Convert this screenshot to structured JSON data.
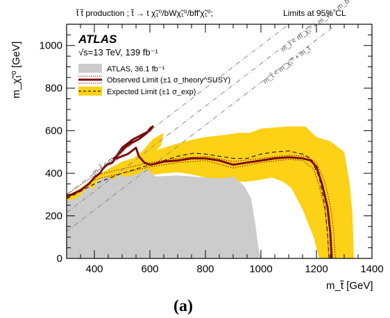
{
  "header": {
    "process": "t̃ t̃ production ; t̃ → t χ̃₁⁰/bWχ̃₁⁰/bff′χ̃₁⁰;",
    "cl": "Limits at 95% CL"
  },
  "atlas": {
    "label": "ATLAS",
    "energy_lumi": "√s=13 TeV, 139 fb⁻¹"
  },
  "panel_label": "(a)",
  "chart_data": {
    "type": "area",
    "xlabel": "m_t̃ [GeV]",
    "ylabel": "m_χ̃₁⁰ [GeV]",
    "xlim": [
      300,
      1400
    ],
    "ylim": [
      0,
      1100
    ],
    "x_ticks": [
      400,
      600,
      800,
      1000,
      1200,
      1400
    ],
    "y_ticks": [
      0,
      200,
      400,
      600,
      800,
      1000
    ],
    "grid": false,
    "legend_position": "top-left",
    "legend": [
      {
        "key": "atlas36",
        "label": "ATLAS, 36.1 fb⁻¹",
        "color": "#cccccc"
      },
      {
        "key": "observed",
        "label": "Observed Limit (±1 σ_theory^SUSY)",
        "color": "#7b0a0a"
      },
      {
        "key": "expected",
        "label": "Expected Limit (±1 σ_exp)",
        "color": "#fcd116"
      }
    ],
    "kinematic_lines": [
      {
        "label": "m_t̃ < m_χ̃₁⁰",
        "offset": 0
      },
      {
        "label": "m_t̃ < m_χ̃₁⁰ + m_t",
        "offset": 173
      },
      {
        "label": "m_t̃ < m_χ̃₁⁰ + m_W + m_b",
        "offset": 85
      }
    ],
    "atlas36_region": [
      [
        300,
        270
      ],
      [
        340,
        285
      ],
      [
        380,
        340
      ],
      [
        395,
        325
      ],
      [
        405,
        355
      ],
      [
        430,
        380
      ],
      [
        455,
        380
      ],
      [
        470,
        370
      ],
      [
        490,
        400
      ],
      [
        505,
        380
      ],
      [
        515,
        390
      ],
      [
        530,
        385
      ],
      [
        560,
        400
      ],
      [
        590,
        420
      ],
      [
        620,
        385
      ],
      [
        700,
        390
      ],
      [
        800,
        380
      ],
      [
        860,
        375
      ],
      [
        900,
        385
      ],
      [
        940,
        340
      ],
      [
        965,
        280
      ],
      [
        980,
        160
      ],
      [
        990,
        60
      ],
      [
        1000,
        0
      ],
      [
        300,
        0
      ]
    ],
    "expected_band_upper": [
      [
        300,
        290
      ],
      [
        350,
        330
      ],
      [
        400,
        380
      ],
      [
        450,
        420
      ],
      [
        500,
        455
      ],
      [
        560,
        480
      ],
      [
        600,
        500
      ],
      [
        650,
        520
      ],
      [
        700,
        540
      ],
      [
        760,
        560
      ],
      [
        800,
        570
      ],
      [
        870,
        580
      ],
      [
        920,
        590
      ],
      [
        960,
        590
      ],
      [
        1000,
        610
      ],
      [
        1050,
        615
      ],
      [
        1100,
        620
      ],
      [
        1160,
        620
      ],
      [
        1200,
        570
      ],
      [
        1250,
        550
      ],
      [
        1300,
        500
      ],
      [
        1320,
        350
      ],
      [
        1330,
        200
      ],
      [
        1335,
        0
      ]
    ],
    "expected_band_lower": [
      [
        1210,
        0
      ],
      [
        1190,
        100
      ],
      [
        1150,
        230
      ],
      [
        1110,
        330
      ],
      [
        1080,
        360
      ],
      [
        1040,
        380
      ],
      [
        1000,
        370
      ],
      [
        950,
        360
      ],
      [
        900,
        360
      ],
      [
        850,
        370
      ],
      [
        800,
        380
      ],
      [
        750,
        395
      ],
      [
        700,
        405
      ],
      [
        650,
        400
      ],
      [
        600,
        390
      ],
      [
        560,
        380
      ],
      [
        500,
        360
      ],
      [
        450,
        330
      ],
      [
        400,
        300
      ],
      [
        350,
        270
      ],
      [
        300,
        250
      ]
    ],
    "expected_band_lobes": [
      [
        [
          460,
          310
        ],
        [
          500,
          430
        ],
        [
          540,
          470
        ],
        [
          570,
          500
        ],
        [
          610,
          560
        ],
        [
          650,
          590
        ],
        [
          640,
          530
        ],
        [
          600,
          480
        ],
        [
          560,
          440
        ],
        [
          520,
          390
        ],
        [
          480,
          330
        ]
      ]
    ],
    "expected_limit": [
      [
        300,
        280
      ],
      [
        400,
        350
      ],
      [
        500,
        400
      ],
      [
        600,
        440
      ],
      [
        700,
        480
      ],
      [
        760,
        495
      ],
      [
        800,
        490
      ],
      [
        850,
        480
      ],
      [
        900,
        470
      ],
      [
        950,
        470
      ],
      [
        1000,
        490
      ],
      [
        1050,
        500
      ],
      [
        1100,
        505
      ],
      [
        1150,
        490
      ],
      [
        1180,
        470
      ],
      [
        1210,
        380
      ],
      [
        1230,
        250
      ],
      [
        1240,
        120
      ],
      [
        1245,
        0
      ]
    ],
    "observed_limit": [
      [
        300,
        290
      ],
      [
        350,
        320
      ],
      [
        380,
        350
      ],
      [
        400,
        380
      ],
      [
        420,
        400
      ],
      [
        430,
        420
      ],
      [
        445,
        440
      ],
      [
        465,
        450
      ],
      [
        480,
        480
      ],
      [
        495,
        500
      ],
      [
        510,
        520
      ],
      [
        530,
        540
      ],
      [
        560,
        560
      ],
      [
        590,
        590
      ],
      [
        600,
        610
      ],
      [
        610,
        620
      ],
      [
        600,
        600
      ],
      [
        570,
        580
      ],
      [
        540,
        560
      ],
      [
        520,
        540
      ],
      [
        500,
        520
      ],
      [
        490,
        500
      ],
      [
        480,
        480
      ],
      [
        470,
        470
      ],
      [
        480,
        470
      ],
      [
        500,
        480
      ],
      [
        520,
        490
      ],
      [
        530,
        500
      ],
      [
        540,
        510
      ],
      [
        550,
        520
      ],
      [
        560,
        480
      ],
      [
        580,
        450
      ],
      [
        600,
        440
      ],
      [
        620,
        445
      ],
      [
        650,
        455
      ],
      [
        700,
        460
      ],
      [
        750,
        470
      ],
      [
        800,
        470
      ],
      [
        850,
        460
      ],
      [
        900,
        440
      ],
      [
        950,
        450
      ],
      [
        1000,
        460
      ],
      [
        1050,
        470
      ],
      [
        1100,
        475
      ],
      [
        1150,
        470
      ],
      [
        1180,
        460
      ],
      [
        1200,
        430
      ],
      [
        1220,
        350
      ],
      [
        1240,
        240
      ],
      [
        1250,
        120
      ],
      [
        1255,
        0
      ]
    ],
    "observed_theory_up": [
      [
        300,
        300
      ],
      [
        400,
        390
      ],
      [
        500,
        420
      ],
      [
        600,
        450
      ],
      [
        700,
        470
      ],
      [
        800,
        480
      ],
      [
        900,
        455
      ],
      [
        1000,
        470
      ],
      [
        1100,
        485
      ],
      [
        1160,
        480
      ],
      [
        1200,
        450
      ],
      [
        1230,
        360
      ],
      [
        1250,
        250
      ],
      [
        1262,
        130
      ],
      [
        1268,
        0
      ]
    ],
    "observed_theory_down": [
      [
        300,
        280
      ],
      [
        400,
        370
      ],
      [
        500,
        400
      ],
      [
        600,
        430
      ],
      [
        700,
        450
      ],
      [
        800,
        460
      ],
      [
        900,
        425
      ],
      [
        1000,
        450
      ],
      [
        1100,
        465
      ],
      [
        1150,
        460
      ],
      [
        1190,
        420
      ],
      [
        1210,
        340
      ],
      [
        1230,
        230
      ],
      [
        1240,
        110
      ],
      [
        1245,
        0
      ]
    ]
  }
}
